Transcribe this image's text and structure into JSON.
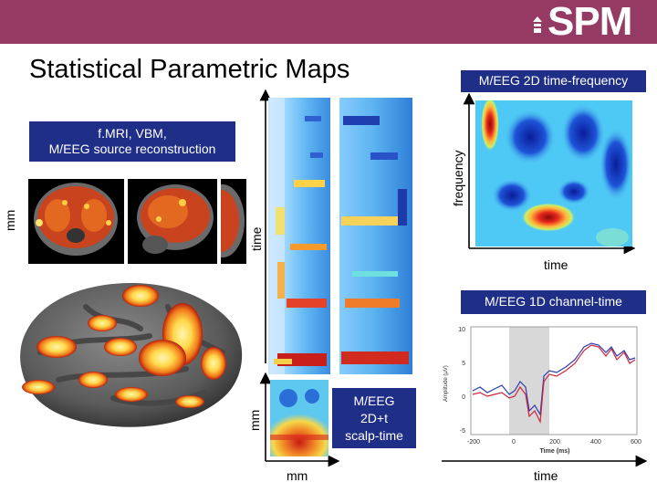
{
  "header": {
    "logo_text": "SPM",
    "logo_icon": "spm-mark-icon",
    "bar_color": "#943a63"
  },
  "title": "Statistical Parametric Maps",
  "panels": {
    "fmri": {
      "box_label": "f.MRI, VBM,\nM/EEG source reconstruction",
      "y_axis_label": "mm"
    },
    "time_freq": {
      "box_label": "M/EEG 2D time-frequency",
      "y_axis_label": "frequency",
      "x_axis_label": "time"
    },
    "time_strip": {
      "y_axis_label": "time"
    },
    "scalp": {
      "box_label": "M/EEG\n2D+t\nscalp-time",
      "y_axis_label": "mm",
      "x_axis_label": "mm"
    },
    "channel_time": {
      "box_label": "M/EEG 1D channel-time",
      "x_axis_label": "time",
      "inner_xlabel": "Time (ms)",
      "inner_ylabel": "Amplitude (μV)",
      "x_ticks": [
        "-200",
        "0",
        "200",
        "400",
        "600"
      ],
      "y_ticks": [
        "10",
        "5",
        "0",
        "-5"
      ]
    }
  },
  "colors": {
    "label_box": "#1f2f88",
    "series_blue": "#2b3bb0",
    "series_red": "#d0243a",
    "shaded_window": "#d8d8d8"
  }
}
